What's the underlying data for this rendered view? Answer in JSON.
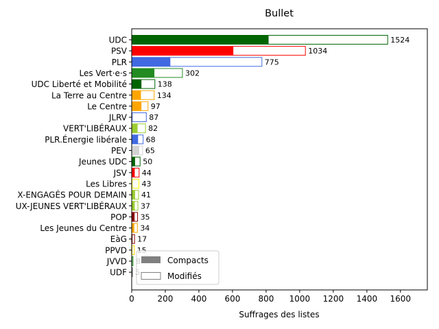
{
  "chart_data": {
    "type": "bar",
    "orientation": "horizontal",
    "title": "Bullet",
    "xlabel": "Suffrages des listes",
    "ylabel": "",
    "xlim": [
      0,
      1760
    ],
    "xticks": [
      "0",
      "200",
      "400",
      "600",
      "800",
      "1000",
      "1200",
      "1400",
      "1600"
    ],
    "grid": false,
    "legend_position": "lower-left",
    "legend": [
      {
        "name": "Compacts",
        "color": "#808080",
        "style": "filled"
      },
      {
        "name": "Modifiés",
        "color": "#808080",
        "style": "outline"
      }
    ],
    "categories": [
      "UDC",
      "PSV",
      "PLR",
      "Les Vert·e·s",
      "UDC Liberté et Mobilité",
      "La Terre au Centre",
      "Le Centre",
      "JLRV",
      "VERT'LIBÉRAUX",
      "PLR.Énergie libérale",
      "PEV",
      "Jeunes UDC",
      "JSV",
      "Les Libres",
      "X-ENGAGÉS POUR DEMAIN",
      "UX-JEUNES VERT'LIBÉRAUX",
      "POP",
      "Les Jeunes du Centre",
      "EàG",
      "PPVD",
      "JVVD",
      "UDF"
    ],
    "colors": [
      "#006400",
      "#ff0000",
      "#4169e1",
      "#228b22",
      "#006400",
      "#ffa500",
      "#ffa500",
      "#4169e1",
      "#9acd32",
      "#4169e1",
      "#d3d3d3",
      "#006400",
      "#ff0000",
      "#ffff00",
      "#9acd32",
      "#9acd32",
      "#8b0000",
      "#ffa500",
      "#8b0000",
      "#ffd700",
      "#228b22",
      "#808080"
    ],
    "series": [
      {
        "name": "Compacts",
        "values": [
          815,
          605,
          230,
          135,
          58,
          55,
          58,
          5,
          35,
          38,
          45,
          20,
          18,
          5,
          20,
          18,
          17,
          15,
          5,
          3,
          3,
          2
        ]
      },
      {
        "name": "Modifiés",
        "values": [
          1524,
          1034,
          775,
          302,
          138,
          134,
          97,
          87,
          82,
          68,
          65,
          50,
          44,
          43,
          41,
          37,
          35,
          34,
          17,
          15,
          8,
          5
        ]
      }
    ],
    "value_labels": [
      "1524",
      "1034",
      "775",
      "302",
      "138",
      "134",
      "97",
      "87",
      "82",
      "68",
      "65",
      "50",
      "44",
      "43",
      "41",
      "37",
      "35",
      "34",
      "17",
      "15",
      "8",
      "5"
    ]
  }
}
